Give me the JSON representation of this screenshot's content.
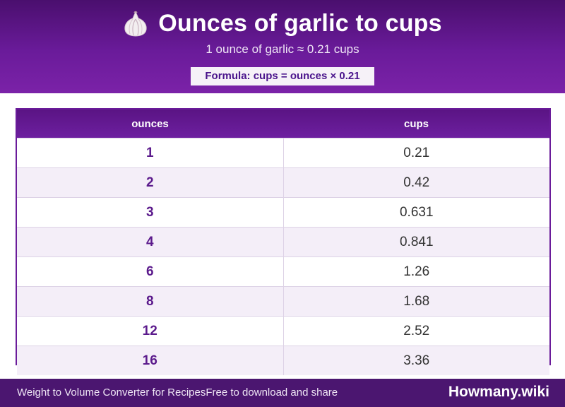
{
  "header": {
    "icon": "garlic-icon",
    "title": "Ounces of garlic to cups",
    "subtitle": "1 ounce of garlic ≈ 0.21 cups",
    "formula": "Formula: cups = ounces × 0.21"
  },
  "table": {
    "columns": [
      "ounces",
      "cups"
    ],
    "rows": [
      [
        "1",
        "0.21"
      ],
      [
        "2",
        "0.42"
      ],
      [
        "3",
        "0.631"
      ],
      [
        "4",
        "0.841"
      ],
      [
        "6",
        "1.26"
      ],
      [
        "8",
        "1.68"
      ],
      [
        "12",
        "2.52"
      ],
      [
        "16",
        "3.36"
      ]
    ]
  },
  "footer": {
    "left_a": "Weight to Volume Converter for Recipes",
    "left_b": "Free to download and share",
    "brand": "Howmany.wiki"
  },
  "colors": {
    "header_purple": "#6a1b9a",
    "footer_purple": "#4b1670",
    "ounce_text": "#5b1a8c",
    "alt_row": "#f4eef8"
  }
}
